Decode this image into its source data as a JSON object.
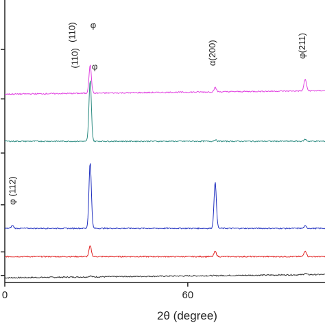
{
  "chart_data": {
    "type": "line",
    "title": "",
    "xlabel": "2θ (degree)",
    "ylabel": "",
    "xlim": [
      0,
      105
    ],
    "x_ticks": [
      {
        "value": 0,
        "label": "0"
      },
      {
        "value": 60,
        "label": "60"
      }
    ],
    "grid": false,
    "legend": "none",
    "series": [
      {
        "color": "#333333",
        "baseline": 0.0,
        "slope": 0.14,
        "peaks": [
          [
            28.0,
            0.04
          ],
          [
            98.5,
            0.06
          ]
        ]
      },
      {
        "color": "#e02020",
        "baseline": 0.9,
        "slope": 0.0,
        "peaks": [
          [
            28.0,
            0.45
          ],
          [
            69.0,
            0.22
          ],
          [
            98.5,
            0.25
          ]
        ]
      },
      {
        "color": "#1f2fbf",
        "baseline": 2.1,
        "slope": 0.0,
        "peaks": [
          [
            2.5,
            0.12
          ],
          [
            28.0,
            2.8
          ],
          [
            69.0,
            1.95
          ],
          [
            98.5,
            0.1
          ]
        ]
      },
      {
        "color": "#2a8a80",
        "baseline": 5.8,
        "slope": 0.0,
        "peaks": [
          [
            28.0,
            2.6
          ],
          [
            69.0,
            0.06
          ],
          [
            98.5,
            0.08
          ]
        ]
      },
      {
        "color": "#e040e0",
        "baseline": 7.8,
        "slope": 0.15,
        "peaks": [
          [
            28.0,
            1.2
          ],
          [
            69.0,
            0.18
          ],
          [
            98.5,
            0.5
          ]
        ]
      }
    ],
    "annotations": [
      {
        "text": "(110)",
        "x": 23,
        "y": 10.0,
        "rotate": true
      },
      {
        "text": "φ",
        "x": 29,
        "y": 10.6,
        "rotate": false
      },
      {
        "text": "α(200)",
        "x": 69,
        "y": 9.0,
        "rotate": true
      },
      {
        "text": "φ(211)",
        "x": 98.5,
        "y": 9.3,
        "rotate": true
      },
      {
        "text": "(110)",
        "x": 24,
        "y": 8.9,
        "rotate": true
      },
      {
        "text": "φ",
        "x": 29.5,
        "y": 8.85,
        "rotate": false
      },
      {
        "text": "φ (112)",
        "x": 3.5,
        "y": 3.1,
        "rotate": true
      }
    ],
    "ylim": [
      -0.2,
      11.8
    ],
    "left_tick_values": [
      0.1,
      1.1,
      3.1,
      5.3,
      7.6,
      9.7
    ]
  }
}
